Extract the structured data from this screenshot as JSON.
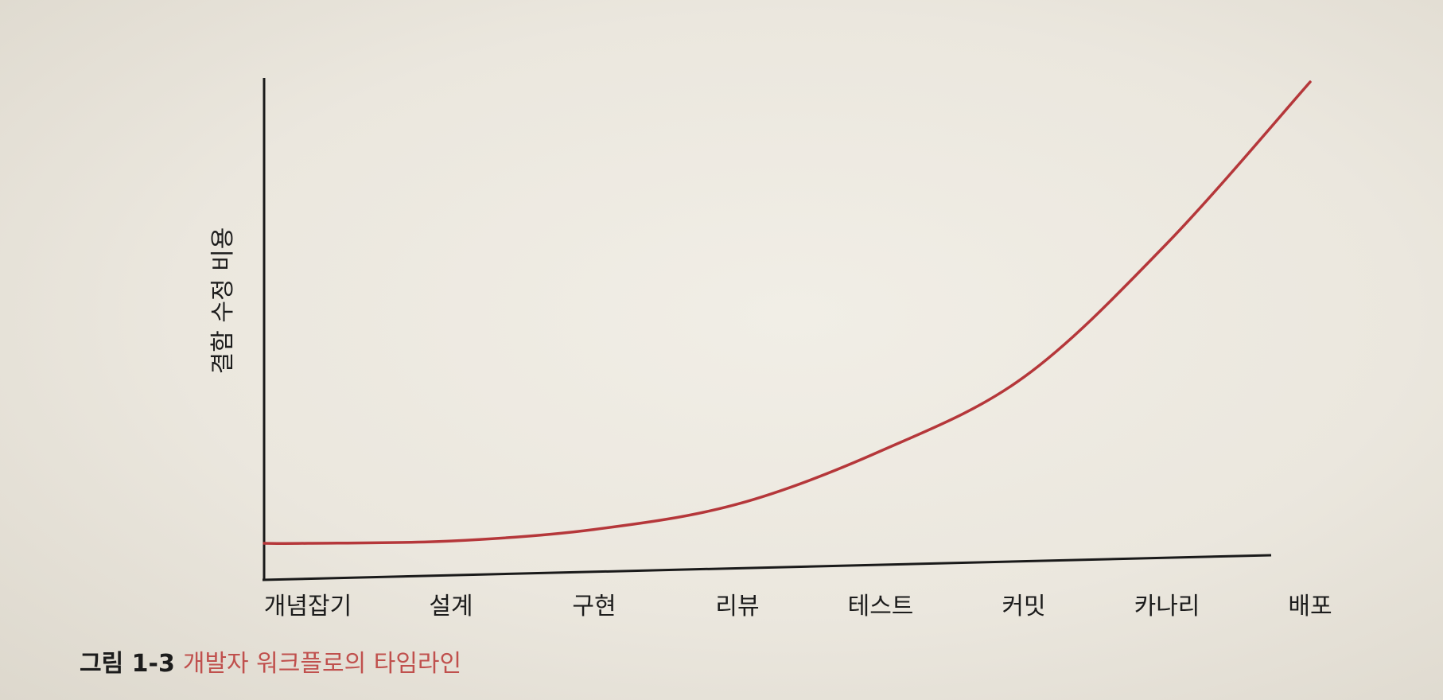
{
  "chart_data": {
    "type": "line",
    "ylabel": "결함 수정 비용",
    "xlabel": "",
    "categories": [
      "개념잡기",
      "설계",
      "구현",
      "리뷰",
      "테스트",
      "커밋",
      "카나리",
      "배포"
    ],
    "series": [
      {
        "values": [
          0.0,
          0.5,
          3.0,
          8.5,
          20.0,
          36.0,
          65.0,
          100.0
        ]
      }
    ],
    "y_ticks_shown": false,
    "grid": false,
    "legend": "none",
    "line_color": "#b5373a",
    "axis_color": "#1a1a1a"
  },
  "caption": {
    "number": "그림 1-3",
    "title": "개발자 워크플로의 타임라인"
  }
}
